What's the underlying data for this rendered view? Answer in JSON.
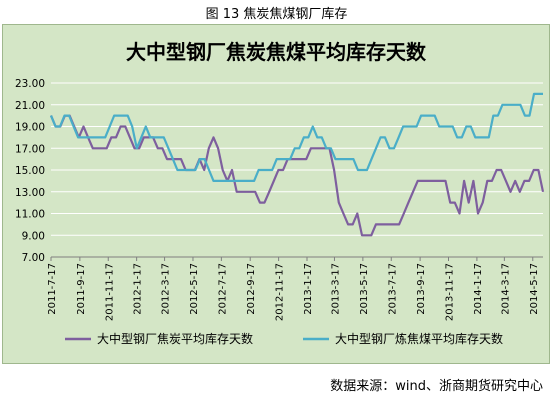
{
  "caption": "图 13  焦炭焦煤钢厂库存",
  "source": "数据来源：wind、浙商期货研究中心",
  "colors": {
    "background": "#d4e6c6",
    "coke": "#7e5f9e",
    "coking_coal": "#4aaec8"
  },
  "chart_data": {
    "type": "line",
    "title": "大中型钢厂焦炭焦煤平均库存天数",
    "xlabel": "",
    "ylabel": "",
    "ylim": [
      7.0,
      23.0
    ],
    "yticks": [
      "7.00",
      "9.00",
      "11.00",
      "13.00",
      "15.00",
      "17.00",
      "19.00",
      "21.00",
      "23.00"
    ],
    "grid": "horizontal",
    "legend_position": "bottom",
    "xtick_labels": [
      "2011-7-17",
      "2011-9-17",
      "2011-11-17",
      "2012-1-17",
      "2012-3-17",
      "2012-5-17",
      "2012-7-17",
      "2012-9-17",
      "2012-11-17",
      "2013-1-17",
      "2013-3-17",
      "2013-5-17",
      "2013-7-17",
      "2013-9-17",
      "2013-11-17",
      "2014-1-17",
      "2014-3-17",
      "2014-5-17"
    ],
    "x_start": "2011-07-17",
    "x_end": "2014-06-08",
    "series": [
      {
        "name": "大中型钢厂焦炭平均库存天数",
        "values": [
          20,
          19,
          19,
          20,
          20,
          19,
          18,
          19,
          18,
          17,
          17,
          17,
          17,
          18,
          18,
          19,
          19,
          18,
          17,
          17,
          18,
          18,
          18,
          17,
          17,
          16,
          16,
          16,
          16,
          15,
          15,
          15,
          16,
          15,
          17,
          18,
          17,
          15,
          14,
          15,
          13,
          13,
          13,
          13,
          13,
          12,
          12,
          13,
          14,
          15,
          15,
          16,
          16,
          16,
          16,
          16,
          17,
          17,
          17,
          17,
          17,
          15,
          12,
          11,
          10,
          10,
          11,
          9,
          9,
          9,
          10,
          10,
          10,
          10,
          10,
          10,
          11,
          12,
          13,
          14,
          14,
          14,
          14,
          14,
          14,
          14,
          12,
          12,
          11,
          14,
          12,
          14,
          11,
          12,
          14,
          14,
          15,
          15,
          14,
          13,
          14,
          13,
          14,
          14,
          15,
          15,
          13
        ]
      },
      {
        "name": "大中型钢厂炼焦煤平均库存天数",
        "values": [
          20,
          19,
          19,
          20,
          20,
          19,
          18,
          18,
          18,
          18,
          18,
          18,
          18,
          19,
          20,
          20,
          20,
          20,
          19,
          17,
          18,
          19,
          18,
          18,
          18,
          18,
          17,
          16,
          15,
          15,
          15,
          15,
          15,
          16,
          16,
          15,
          14,
          14,
          14,
          14,
          14,
          14,
          14,
          14,
          14,
          14,
          15,
          15,
          15,
          15,
          16,
          16,
          16,
          16,
          17,
          17,
          18,
          18,
          19,
          18,
          18,
          17,
          17,
          16,
          16,
          16,
          16,
          16,
          15,
          15,
          15,
          16,
          17,
          18,
          18,
          17,
          17,
          18,
          19,
          19,
          19,
          19,
          20,
          20,
          20,
          20,
          19,
          19,
          19,
          19,
          18,
          18,
          19,
          19,
          18,
          18,
          18,
          18,
          20,
          20,
          21,
          21,
          21,
          21,
          21,
          20,
          20,
          22,
          22,
          22
        ]
      }
    ]
  }
}
